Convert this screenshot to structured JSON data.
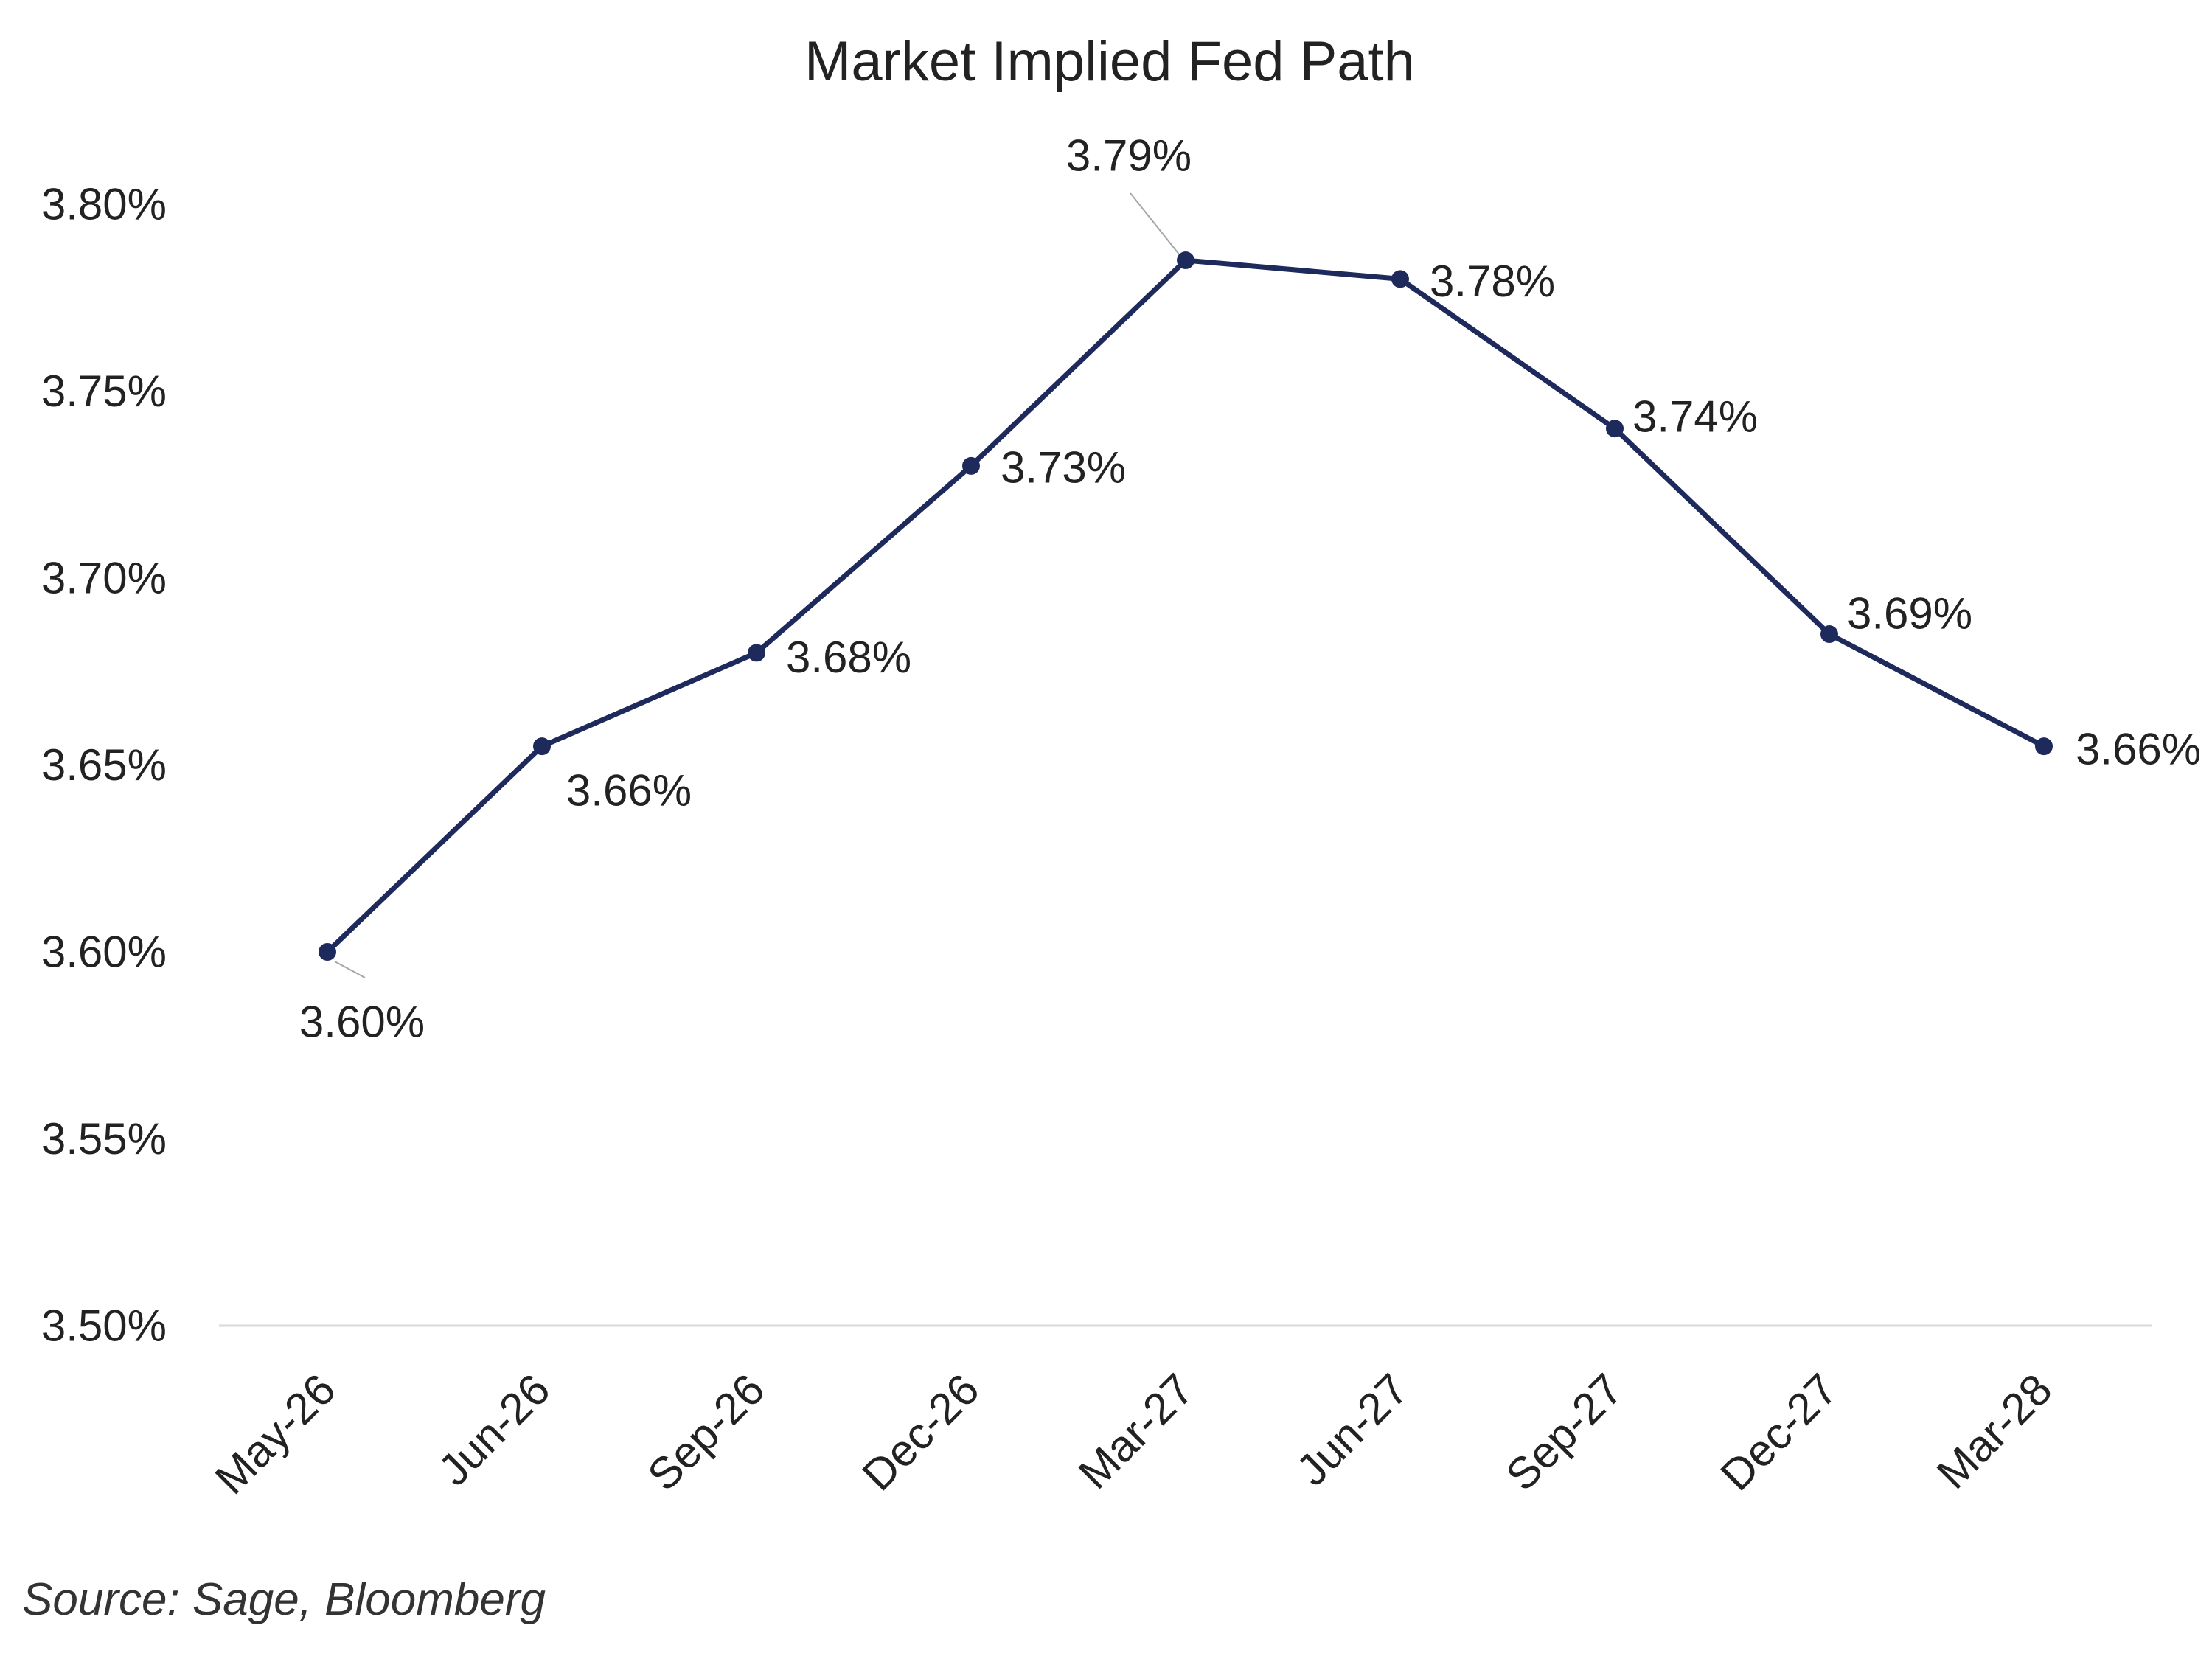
{
  "chart_data": {
    "type": "line",
    "title": "Market Implied Fed Path",
    "xlabel": "",
    "ylabel": "",
    "categories": [
      "May-26",
      "Jun-26",
      "Sep-26",
      "Dec-26",
      "Mar-27",
      "Jun-27",
      "Sep-27",
      "Dec-27",
      "Mar-28"
    ],
    "series": [
      {
        "values": [
          3.6,
          3.655,
          3.68,
          3.73,
          3.785,
          3.78,
          3.74,
          3.685,
          3.655
        ],
        "data_labels": [
          "3.60%",
          "3.66%",
          "3.68%",
          "3.73%",
          "3.79%",
          "3.78%",
          "3.74%",
          "3.69%",
          "3.66%"
        ]
      }
    ],
    "ylim": [
      3.5,
      3.8
    ],
    "yticks": [
      "3.50%",
      "3.55%",
      "3.60%",
      "3.65%",
      "3.70%",
      "3.75%",
      "3.80%"
    ],
    "grid": false,
    "legend": "none",
    "line_color": "#1f2a5c",
    "axis_color": "#d9d9d9",
    "label_color": "#222222",
    "leader_color": "#a6a6a6"
  },
  "source": "Source: Sage, Bloomberg"
}
